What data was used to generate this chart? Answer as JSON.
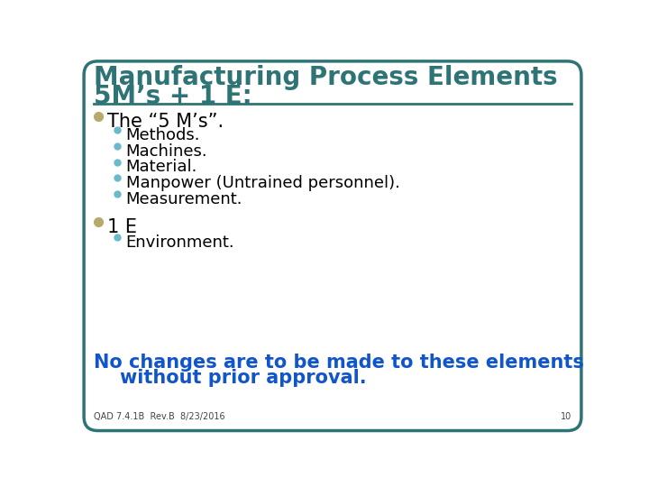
{
  "title_line1": "Manufacturing Process Elements",
  "title_line2": "5M’s + 1 E:",
  "title_color": "#2E7476",
  "bg_color": "#FFFFFF",
  "border_color": "#2E7476",
  "divider_color": "#2E7476",
  "bullet1_color": "#B8A96A",
  "bullet2_color": "#6ABACC",
  "main_bullet1": "The “5 M’s”.",
  "sub_bullets1": [
    "Methods.",
    "Machines.",
    "Material.",
    "Manpower (Untrained personnel).",
    "Measurement."
  ],
  "main_bullet2": "1 E",
  "sub_bullets2": [
    "Environment."
  ],
  "note_line1": "No changes are to be made to these elements",
  "note_line2": "    without prior approval.",
  "note_color": "#1155CC",
  "footer_text": "QAD 7.4.1B  Rev.B  8/23/2016",
  "page_number": "10",
  "body_text_color": "#000000",
  "title_fontsize": 20,
  "main_bullet_fontsize": 15,
  "sub_bullet_fontsize": 13,
  "note_fontsize": 15,
  "footer_fontsize": 7
}
